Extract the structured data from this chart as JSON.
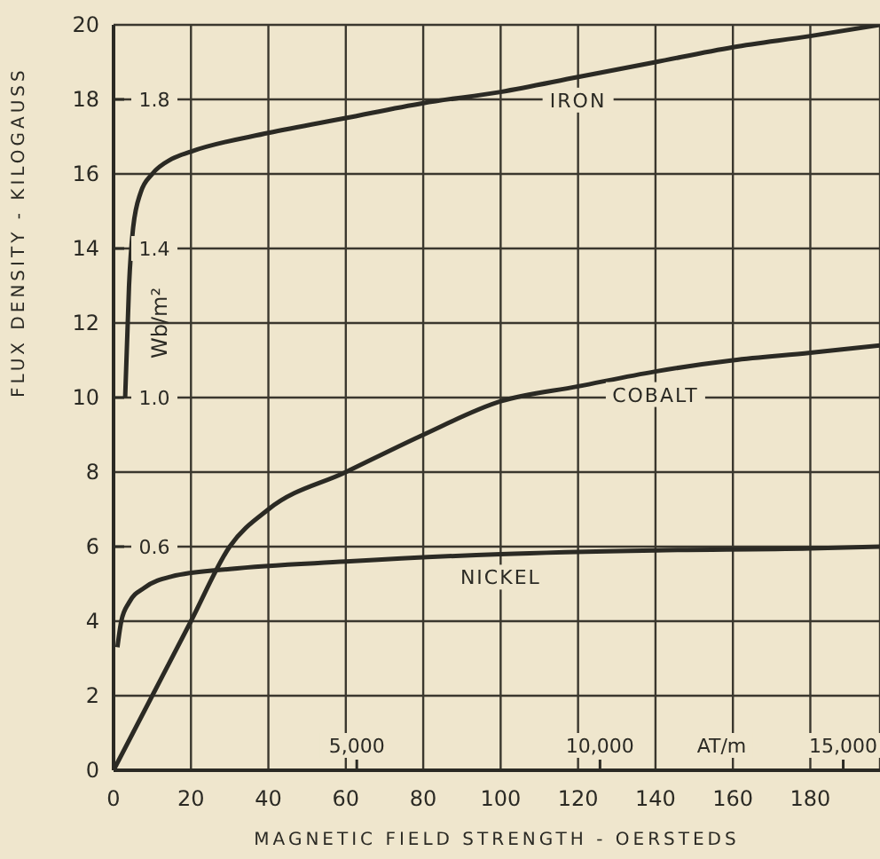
{
  "chart_data": {
    "type": "line",
    "xlabel": "MAGNETIC FIELD STRENGTH - OERSTEDS",
    "ylabel": "FLUX DENSITY - KILOGAUSS",
    "y2label": "Wb/m²",
    "x2label": "AT/m",
    "xlim": [
      0,
      198
    ],
    "xticks": [
      0,
      20,
      40,
      60,
      80,
      100,
      120,
      140,
      160,
      180
    ],
    "ylim": [
      0,
      20
    ],
    "yticks": [
      0,
      2,
      4,
      6,
      8,
      10,
      12,
      14,
      16,
      18,
      20
    ],
    "y2lim": [
      0,
      2
    ],
    "y2ticks": [
      0.6,
      {
        "value": 1.0,
        "label": "1.0"
      },
      1.4,
      1.8
    ],
    "x2lim": [
      0,
      15756
    ],
    "x2ticks": [
      {
        "value": 5000,
        "label": "5,000"
      },
      {
        "value": 10000,
        "label": "10,000"
      },
      {
        "value": 15000,
        "label": "15,000"
      }
    ],
    "grid": true,
    "legend": false,
    "marker": "none",
    "line_style": "solid",
    "series": [
      {
        "name": "IRON",
        "color": "#2b2a24",
        "x": [
          3,
          4,
          5,
          7,
          10,
          15,
          20,
          40,
          60,
          80,
          100,
          120,
          140,
          160,
          180,
          198
        ],
        "values": [
          10,
          13,
          14.5,
          15.5,
          16.0,
          16.4,
          16.6,
          17.1,
          17.5,
          17.9,
          18.2,
          18.6,
          19.0,
          19.4,
          19.7,
          20
        ]
      },
      {
        "name": "COBALT",
        "color": "#2b2a24",
        "x": [
          0,
          10,
          20,
          30,
          40,
          60,
          80,
          100,
          120,
          140,
          160,
          180,
          198
        ],
        "values": [
          0,
          2,
          4,
          6,
          7,
          8,
          9,
          9.9,
          10.3,
          10.7,
          11.0,
          11.2,
          11.4
        ]
      },
      {
        "name": "NICKEL",
        "color": "#2b2a24",
        "x": [
          1,
          2,
          4,
          8,
          15,
          30,
          60,
          100,
          140,
          180,
          198
        ],
        "values": [
          3.3,
          4,
          4.5,
          4.9,
          5.2,
          5.4,
          5.6,
          5.8,
          5.9,
          5.95,
          6.0
        ]
      }
    ]
  }
}
